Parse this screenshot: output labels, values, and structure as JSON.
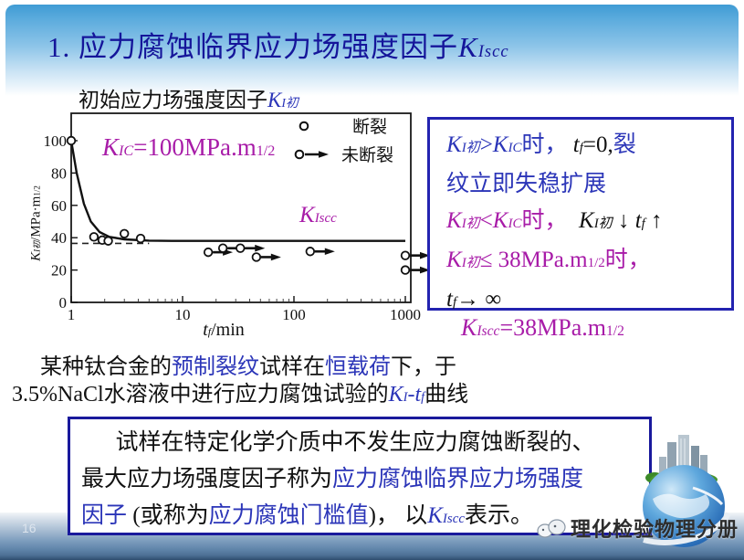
{
  "slide": {
    "title_runs": [
      [
        "1. 应力腐蚀临界应力场强度因子",
        ""
      ],
      [
        "K",
        "i"
      ],
      [
        "Iscc",
        "i sub"
      ]
    ],
    "subtitle_runs": [
      [
        "初始应力场强度因子",
        ""
      ],
      [
        "K",
        "b i"
      ],
      [
        "I初",
        "b i sub"
      ]
    ],
    "page_number": "16",
    "logo_text": "理化检验物理分册"
  },
  "formula_box": {
    "line1_runs": [
      [
        "K",
        "i"
      ],
      [
        "I初",
        "i sub"
      ],
      [
        ">",
        ""
      ],
      [
        "K",
        "i"
      ],
      [
        "IC",
        "i sub"
      ],
      [
        "时，",
        ""
      ],
      [
        " ",
        ""
      ],
      [
        "t",
        "k i"
      ],
      [
        "f",
        "k i sub"
      ],
      [
        "=0,",
        "k"
      ],
      [
        "裂",
        ""
      ]
    ],
    "line2_runs": [
      [
        "纹立即失稳扩展",
        ""
      ]
    ],
    "line3_runs": [
      [
        "K",
        "m i"
      ],
      [
        "I初",
        "m i sub"
      ],
      [
        "<",
        "m"
      ],
      [
        "K",
        "m i"
      ],
      [
        "IC",
        "m i sub"
      ],
      [
        "时，",
        "m"
      ],
      [
        "  ",
        ""
      ],
      [
        "K",
        "i"
      ],
      [
        "I初",
        "i sub"
      ],
      [
        " ↓ ",
        ""
      ],
      [
        "t",
        "i"
      ],
      [
        "f",
        "i sub"
      ],
      [
        " ↑",
        ""
      ]
    ],
    "line4_runs": [
      [
        "K",
        "m i"
      ],
      [
        "I初",
        "m i sub"
      ],
      [
        "≤ ",
        "m"
      ],
      [
        "38MPa.m",
        "m"
      ],
      [
        "1/2",
        "m sub"
      ],
      [
        "时，",
        "m"
      ]
    ],
    "line5_runs": [
      [
        "t",
        "i"
      ],
      [
        "f",
        "i sub"
      ],
      [
        "→ ∞",
        ""
      ]
    ]
  },
  "kiscc_equation_runs": [
    [
      "K",
      "m i"
    ],
    [
      "Iscc",
      "m i sub"
    ],
    [
      "=38MPa.m",
      "m"
    ],
    [
      "1/2",
      "m sub"
    ]
  ],
  "caption": {
    "line1_runs": [
      [
        "某种钛合金的",
        ""
      ],
      [
        "预制裂纹",
        "b"
      ],
      [
        "试样在",
        ""
      ],
      [
        "恒载荷",
        "b"
      ],
      [
        "下，于",
        ""
      ]
    ],
    "line2_runs": [
      [
        "3.5%NaCl水溶液中进行应力腐蚀试验的",
        ""
      ],
      [
        "K",
        "b i"
      ],
      [
        "I",
        "b i sub"
      ],
      [
        "-",
        "b"
      ],
      [
        "t",
        "b i"
      ],
      [
        "f",
        "b i sub"
      ],
      [
        "曲线",
        ""
      ]
    ]
  },
  "definition_box": {
    "line1_runs": [
      [
        "试样在特定化学介质中不发生应力腐蚀断裂的、",
        ""
      ]
    ],
    "line2_runs": [
      [
        "最大应力场强度因子称为",
        ""
      ],
      [
        "应力腐蚀临界应力场强度",
        "b"
      ]
    ],
    "line3_runs": [
      [
        "因子",
        "b"
      ],
      [
        " (或称为",
        ""
      ],
      [
        "应力腐蚀门槛值",
        "b"
      ],
      [
        ")， 以",
        ""
      ],
      [
        "K",
        "b i"
      ],
      [
        "Iscc",
        "b i sub"
      ],
      [
        "表示。",
        ""
      ]
    ]
  },
  "chart_data": {
    "type": "scatter",
    "x_scale": "log",
    "x_ticks": [
      1,
      10,
      100,
      1000
    ],
    "y_ticks": [
      0,
      20,
      40,
      60,
      80,
      100
    ],
    "x_range": [
      1,
      1000
    ],
    "y_range": [
      0,
      117
    ],
    "xlabel_runs": [
      [
        "t",
        "i"
      ],
      [
        "f",
        "i sub"
      ],
      [
        "/min",
        ""
      ]
    ],
    "ylabel_runs": [
      [
        "K",
        "i"
      ],
      [
        "I初",
        "i sub"
      ],
      [
        "/MPa·m",
        ""
      ],
      [
        "1/2",
        "sub"
      ]
    ],
    "kic_annotation_runs": [
      [
        "K",
        "m i"
      ],
      [
        "IC",
        "m i sub"
      ],
      [
        "=100MPa.m",
        "m"
      ],
      [
        "1/2",
        "m sub"
      ]
    ],
    "kiscc_label_runs": [
      [
        "K",
        "m i"
      ],
      [
        "Iscc",
        "m i sub"
      ]
    ],
    "legend": [
      "断裂",
      "未断裂"
    ],
    "kiscc_value": 38,
    "kic_value": 100,
    "curve": [
      [
        1,
        100
      ],
      [
        1.12,
        80
      ],
      [
        1.3,
        61
      ],
      [
        1.5,
        50
      ],
      [
        1.8,
        43.5
      ],
      [
        2.2,
        40.5
      ],
      [
        3,
        39
      ],
      [
        5,
        38.2
      ],
      [
        8,
        38
      ],
      [
        1000,
        38
      ]
    ],
    "threshold_dashed": {
      "k": 36.5,
      "from": 1,
      "to": 5
    },
    "fracture_points": [
      [
        1,
        100
      ],
      [
        1.6,
        40.5
      ],
      [
        1.9,
        38.5
      ],
      [
        2.15,
        38
      ],
      [
        3,
        42.5
      ],
      [
        4.2,
        39.5
      ]
    ],
    "no_fracture_points": [
      [
        17,
        31
      ],
      [
        23,
        33.5
      ],
      [
        33,
        33.5
      ],
      [
        46,
        28
      ],
      [
        140,
        31.5
      ],
      [
        1000,
        29
      ],
      [
        1000,
        20
      ]
    ]
  }
}
